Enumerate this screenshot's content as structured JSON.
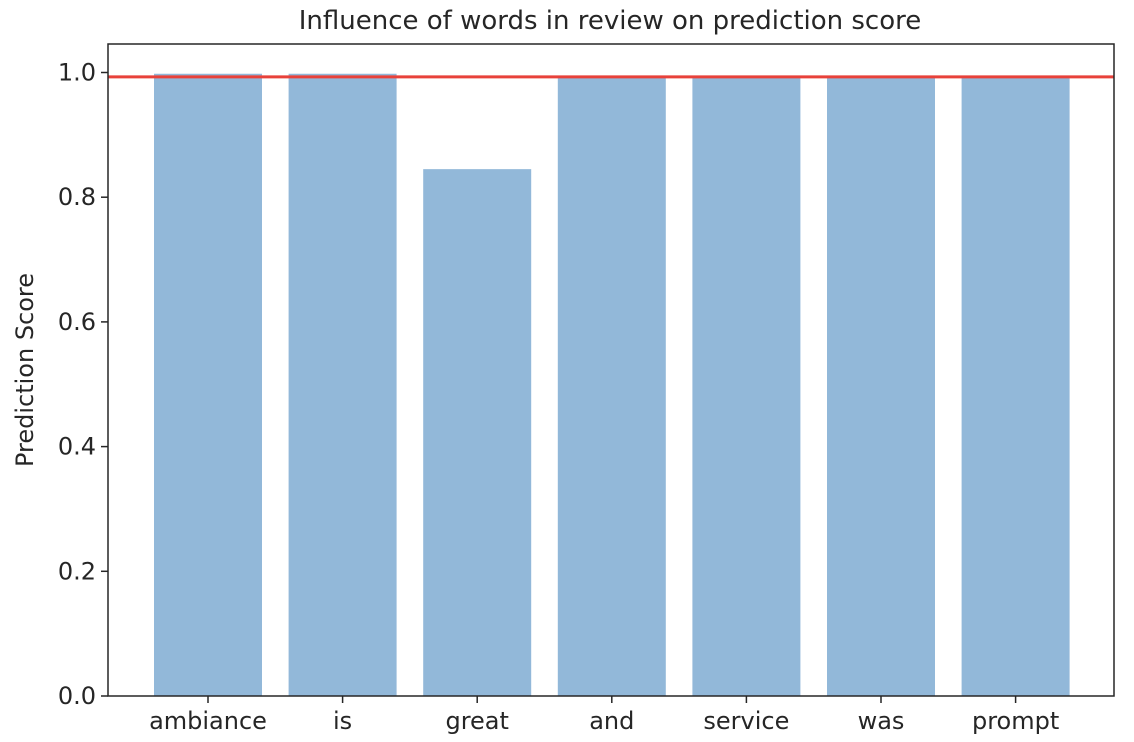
{
  "chart_data": {
    "type": "bar",
    "title": "Influence of words in review on prediction score",
    "xlabel": "",
    "ylabel": "Prediction Score",
    "categories": [
      "ambiance",
      "is",
      "great",
      "and",
      "service",
      "was",
      "prompt"
    ],
    "values": [
      0.998,
      0.998,
      0.845,
      0.994,
      0.993,
      0.993,
      0.993
    ],
    "ylim": [
      0.0,
      1.05
    ],
    "yticks": [
      "0.0",
      "0.2",
      "0.4",
      "0.6",
      "0.8",
      "1.0"
    ],
    "reference_line": 0.993,
    "grid": false,
    "colors": {
      "bar": "#92b8d9",
      "reference_line": "#e8413a",
      "axis": "#262626"
    }
  }
}
